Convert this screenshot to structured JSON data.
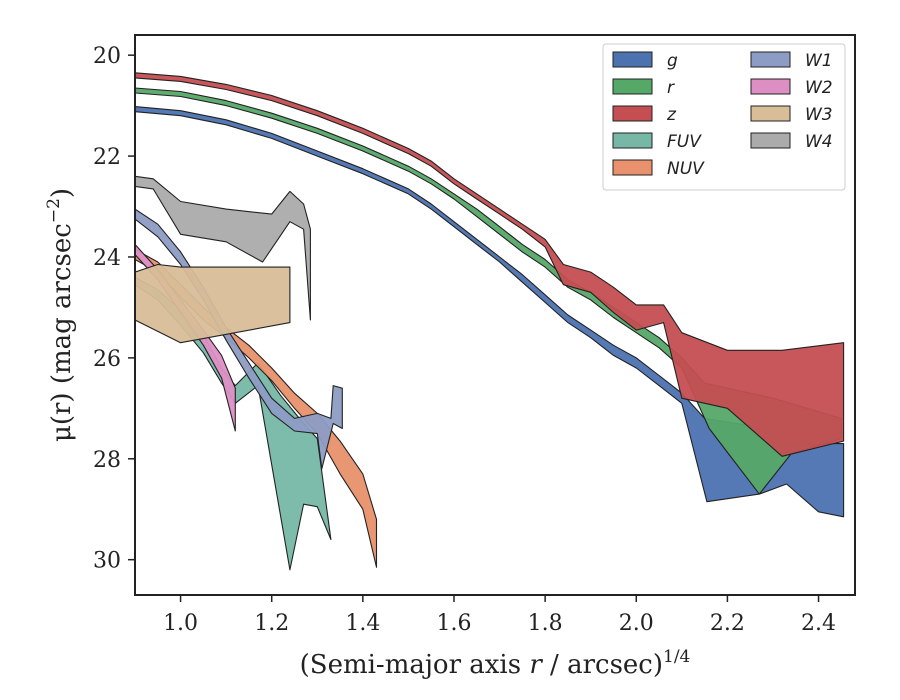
{
  "chart_data": {
    "type": "area",
    "xlabel": "(Semi-major axis r / arcsec)",
    "xlabel_var": "r",
    "xlabel_exp": "1/4",
    "ylabel": "μ(r) (mag arcsec",
    "ylabel_exp": "−2",
    "xlim": [
      0.9,
      2.48
    ],
    "ylim": [
      30.7,
      19.6
    ],
    "y_inverted": true,
    "xticks": [
      1.0,
      1.2,
      1.4,
      1.6,
      1.8,
      2.0,
      2.2,
      2.4
    ],
    "xtick_labels": [
      "1.0",
      "1.2",
      "1.4",
      "1.6",
      "1.8",
      "2.0",
      "2.2",
      "2.4"
    ],
    "yticks": [
      20,
      22,
      24,
      26,
      28,
      30
    ],
    "ytick_labels": [
      "20",
      "22",
      "24",
      "26",
      "28",
      "30"
    ],
    "grid": false,
    "legend_position": "top-right",
    "legend_columns": 2,
    "series": [
      {
        "name": "g",
        "color": "#4c72b0",
        "upper": [
          [
            0.9,
            21.02
          ],
          [
            1.0,
            21.1
          ],
          [
            1.1,
            21.28
          ],
          [
            1.2,
            21.55
          ],
          [
            1.3,
            21.9
          ],
          [
            1.4,
            22.25
          ],
          [
            1.5,
            22.65
          ],
          [
            1.55,
            22.95
          ],
          [
            1.6,
            23.3
          ],
          [
            1.65,
            23.65
          ],
          [
            1.7,
            24.0
          ],
          [
            1.75,
            24.35
          ],
          [
            1.8,
            24.75
          ],
          [
            1.85,
            25.15
          ],
          [
            1.9,
            25.45
          ],
          [
            1.95,
            25.75
          ],
          [
            2.0,
            26.0
          ],
          [
            2.05,
            26.35
          ],
          [
            2.1,
            26.7
          ],
          [
            2.15,
            27.2
          ],
          [
            2.22,
            27.3
          ],
          [
            2.3,
            27.4
          ],
          [
            2.38,
            27.7
          ],
          [
            2.455,
            27.7
          ]
        ],
        "lower": [
          [
            0.9,
            21.12
          ],
          [
            1.0,
            21.2
          ],
          [
            1.1,
            21.38
          ],
          [
            1.2,
            21.65
          ],
          [
            1.3,
            22.0
          ],
          [
            1.4,
            22.35
          ],
          [
            1.5,
            22.75
          ],
          [
            1.55,
            23.05
          ],
          [
            1.6,
            23.4
          ],
          [
            1.65,
            23.75
          ],
          [
            1.7,
            24.1
          ],
          [
            1.75,
            24.5
          ],
          [
            1.8,
            24.9
          ],
          [
            1.85,
            25.3
          ],
          [
            1.9,
            25.6
          ],
          [
            1.95,
            25.95
          ],
          [
            2.0,
            26.2
          ],
          [
            2.05,
            26.55
          ],
          [
            2.1,
            26.9
          ],
          [
            2.155,
            28.85
          ],
          [
            2.27,
            28.7
          ],
          [
            2.33,
            28.5
          ],
          [
            2.4,
            29.05
          ],
          [
            2.455,
            29.15
          ]
        ]
      },
      {
        "name": "r",
        "color": "#55a868",
        "upper": [
          [
            0.9,
            20.65
          ],
          [
            1.0,
            20.72
          ],
          [
            1.1,
            20.9
          ],
          [
            1.2,
            21.15
          ],
          [
            1.3,
            21.45
          ],
          [
            1.4,
            21.8
          ],
          [
            1.5,
            22.2
          ],
          [
            1.55,
            22.45
          ],
          [
            1.6,
            22.75
          ],
          [
            1.65,
            23.05
          ],
          [
            1.7,
            23.4
          ],
          [
            1.75,
            23.75
          ],
          [
            1.8,
            24.05
          ],
          [
            1.85,
            24.45
          ],
          [
            1.9,
            24.7
          ],
          [
            1.95,
            25.0
          ],
          [
            2.0,
            25.3
          ],
          [
            2.05,
            25.6
          ],
          [
            2.1,
            26.0
          ],
          [
            2.15,
            26.5
          ],
          [
            2.3,
            26.8
          ],
          [
            2.45,
            27.2
          ]
        ],
        "lower": [
          [
            0.9,
            20.75
          ],
          [
            1.0,
            20.82
          ],
          [
            1.1,
            21.0
          ],
          [
            1.2,
            21.25
          ],
          [
            1.3,
            21.55
          ],
          [
            1.4,
            21.9
          ],
          [
            1.5,
            22.3
          ],
          [
            1.55,
            22.55
          ],
          [
            1.6,
            22.85
          ],
          [
            1.65,
            23.2
          ],
          [
            1.7,
            23.55
          ],
          [
            1.75,
            23.9
          ],
          [
            1.8,
            24.2
          ],
          [
            1.85,
            24.6
          ],
          [
            1.9,
            24.85
          ],
          [
            1.95,
            25.2
          ],
          [
            2.0,
            25.5
          ],
          [
            2.05,
            25.8
          ],
          [
            2.1,
            26.2
          ],
          [
            2.16,
            27.4
          ],
          [
            2.27,
            28.7
          ],
          [
            2.34,
            27.9
          ],
          [
            2.45,
            27.6
          ]
        ]
      },
      {
        "name": "z",
        "color": "#c44e52",
        "upper": [
          [
            0.9,
            20.35
          ],
          [
            1.0,
            20.42
          ],
          [
            1.1,
            20.58
          ],
          [
            1.2,
            20.8
          ],
          [
            1.3,
            21.1
          ],
          [
            1.4,
            21.45
          ],
          [
            1.5,
            21.85
          ],
          [
            1.55,
            22.1
          ],
          [
            1.6,
            22.45
          ],
          [
            1.65,
            22.75
          ],
          [
            1.7,
            23.05
          ],
          [
            1.75,
            23.35
          ],
          [
            1.8,
            23.65
          ],
          [
            1.84,
            24.15
          ],
          [
            1.9,
            24.3
          ],
          [
            1.95,
            24.6
          ],
          [
            2.0,
            24.95
          ],
          [
            2.06,
            24.95
          ],
          [
            2.1,
            25.5
          ],
          [
            2.2,
            25.85
          ],
          [
            2.32,
            25.85
          ],
          [
            2.455,
            25.7
          ]
        ],
        "lower": [
          [
            0.9,
            20.45
          ],
          [
            1.0,
            20.52
          ],
          [
            1.1,
            20.68
          ],
          [
            1.2,
            20.9
          ],
          [
            1.3,
            21.2
          ],
          [
            1.4,
            21.55
          ],
          [
            1.5,
            21.95
          ],
          [
            1.55,
            22.2
          ],
          [
            1.6,
            22.55
          ],
          [
            1.65,
            22.85
          ],
          [
            1.7,
            23.15
          ],
          [
            1.75,
            23.45
          ],
          [
            1.8,
            23.8
          ],
          [
            1.84,
            24.55
          ],
          [
            1.9,
            24.7
          ],
          [
            1.95,
            25.1
          ],
          [
            2.0,
            25.45
          ],
          [
            2.06,
            25.3
          ],
          [
            2.1,
            26.8
          ],
          [
            2.2,
            27.0
          ],
          [
            2.32,
            27.95
          ],
          [
            2.455,
            27.65
          ]
        ]
      },
      {
        "name": "FUV",
        "color": "#76b7a5",
        "upper": [
          [
            0.9,
            24.4
          ],
          [
            0.95,
            24.65
          ],
          [
            1.0,
            25.05
          ],
          [
            1.05,
            25.55
          ],
          [
            1.09,
            26.2
          ],
          [
            1.12,
            26.55
          ],
          [
            1.17,
            26.1
          ],
          [
            1.22,
            26.75
          ],
          [
            1.27,
            27.3
          ],
          [
            1.3,
            27.6
          ]
        ],
        "lower": [
          [
            0.9,
            24.55
          ],
          [
            0.95,
            24.85
          ],
          [
            1.0,
            25.35
          ],
          [
            1.05,
            25.9
          ],
          [
            1.09,
            26.5
          ],
          [
            1.12,
            26.9
          ],
          [
            1.17,
            26.55
          ],
          [
            1.24,
            30.2
          ],
          [
            1.27,
            28.9
          ],
          [
            1.3,
            28.95
          ],
          [
            1.33,
            29.6
          ]
        ]
      },
      {
        "name": "NUV",
        "color": "#e8916c",
        "upper": [
          [
            0.9,
            23.85
          ],
          [
            0.95,
            24.1
          ],
          [
            1.0,
            24.55
          ],
          [
            1.05,
            25.0
          ],
          [
            1.1,
            25.4
          ],
          [
            1.15,
            25.75
          ],
          [
            1.2,
            26.2
          ],
          [
            1.25,
            26.7
          ],
          [
            1.3,
            27.1
          ],
          [
            1.35,
            27.65
          ],
          [
            1.4,
            28.3
          ],
          [
            1.43,
            29.2
          ]
        ],
        "lower": [
          [
            0.9,
            24.05
          ],
          [
            0.95,
            24.3
          ],
          [
            1.0,
            24.8
          ],
          [
            1.05,
            25.25
          ],
          [
            1.1,
            25.6
          ],
          [
            1.15,
            26.0
          ],
          [
            1.2,
            26.45
          ],
          [
            1.25,
            27.0
          ],
          [
            1.3,
            27.5
          ],
          [
            1.35,
            28.3
          ],
          [
            1.4,
            29.0
          ],
          [
            1.43,
            30.15
          ]
        ]
      },
      {
        "name": "W1",
        "color": "#8d9cc4",
        "upper": [
          [
            0.9,
            23.05
          ],
          [
            0.95,
            23.35
          ],
          [
            1.0,
            23.9
          ],
          [
            1.05,
            24.6
          ],
          [
            1.1,
            25.4
          ],
          [
            1.15,
            26.1
          ],
          [
            1.2,
            26.8
          ],
          [
            1.25,
            27.2
          ],
          [
            1.3,
            27.1
          ],
          [
            1.33,
            27.2
          ],
          [
            1.335,
            26.55
          ],
          [
            1.355,
            26.6
          ]
        ],
        "lower": [
          [
            0.9,
            23.25
          ],
          [
            0.95,
            23.6
          ],
          [
            1.0,
            24.15
          ],
          [
            1.05,
            24.85
          ],
          [
            1.1,
            25.65
          ],
          [
            1.15,
            26.4
          ],
          [
            1.2,
            27.1
          ],
          [
            1.25,
            27.45
          ],
          [
            1.3,
            27.5
          ],
          [
            1.31,
            28.2
          ],
          [
            1.335,
            27.3
          ],
          [
            1.355,
            27.4
          ]
        ]
      },
      {
        "name": "W2",
        "color": "#dd8fc4",
        "upper": [
          [
            0.9,
            23.75
          ],
          [
            0.95,
            24.25
          ],
          [
            1.0,
            24.85
          ],
          [
            1.05,
            25.45
          ],
          [
            1.09,
            25.95
          ],
          [
            1.12,
            26.6
          ]
        ],
        "lower": [
          [
            0.9,
            23.95
          ],
          [
            0.95,
            24.45
          ],
          [
            1.0,
            25.1
          ],
          [
            1.05,
            25.75
          ],
          [
            1.09,
            26.4
          ],
          [
            1.12,
            27.45
          ]
        ]
      },
      {
        "name": "W3",
        "color": "#d8bd98",
        "upper": [
          [
            0.9,
            24.3
          ],
          [
            0.95,
            24.15
          ],
          [
            1.0,
            24.2
          ],
          [
            1.24,
            24.2
          ]
        ],
        "lower": [
          [
            0.9,
            25.25
          ],
          [
            1.0,
            25.7
          ],
          [
            1.24,
            25.3
          ]
        ]
      },
      {
        "name": "W4",
        "color": "#ababab",
        "upper": [
          [
            0.9,
            22.4
          ],
          [
            0.94,
            22.45
          ],
          [
            1.0,
            22.9
          ],
          [
            1.1,
            23.05
          ],
          [
            1.2,
            23.15
          ],
          [
            1.24,
            22.7
          ],
          [
            1.27,
            22.95
          ],
          [
            1.285,
            23.45
          ]
        ],
        "lower": [
          [
            0.9,
            22.6
          ],
          [
            0.94,
            22.65
          ],
          [
            1.0,
            23.55
          ],
          [
            1.1,
            23.7
          ],
          [
            1.18,
            24.1
          ],
          [
            1.24,
            23.3
          ],
          [
            1.27,
            23.45
          ],
          [
            1.285,
            25.25
          ]
        ]
      }
    ]
  }
}
